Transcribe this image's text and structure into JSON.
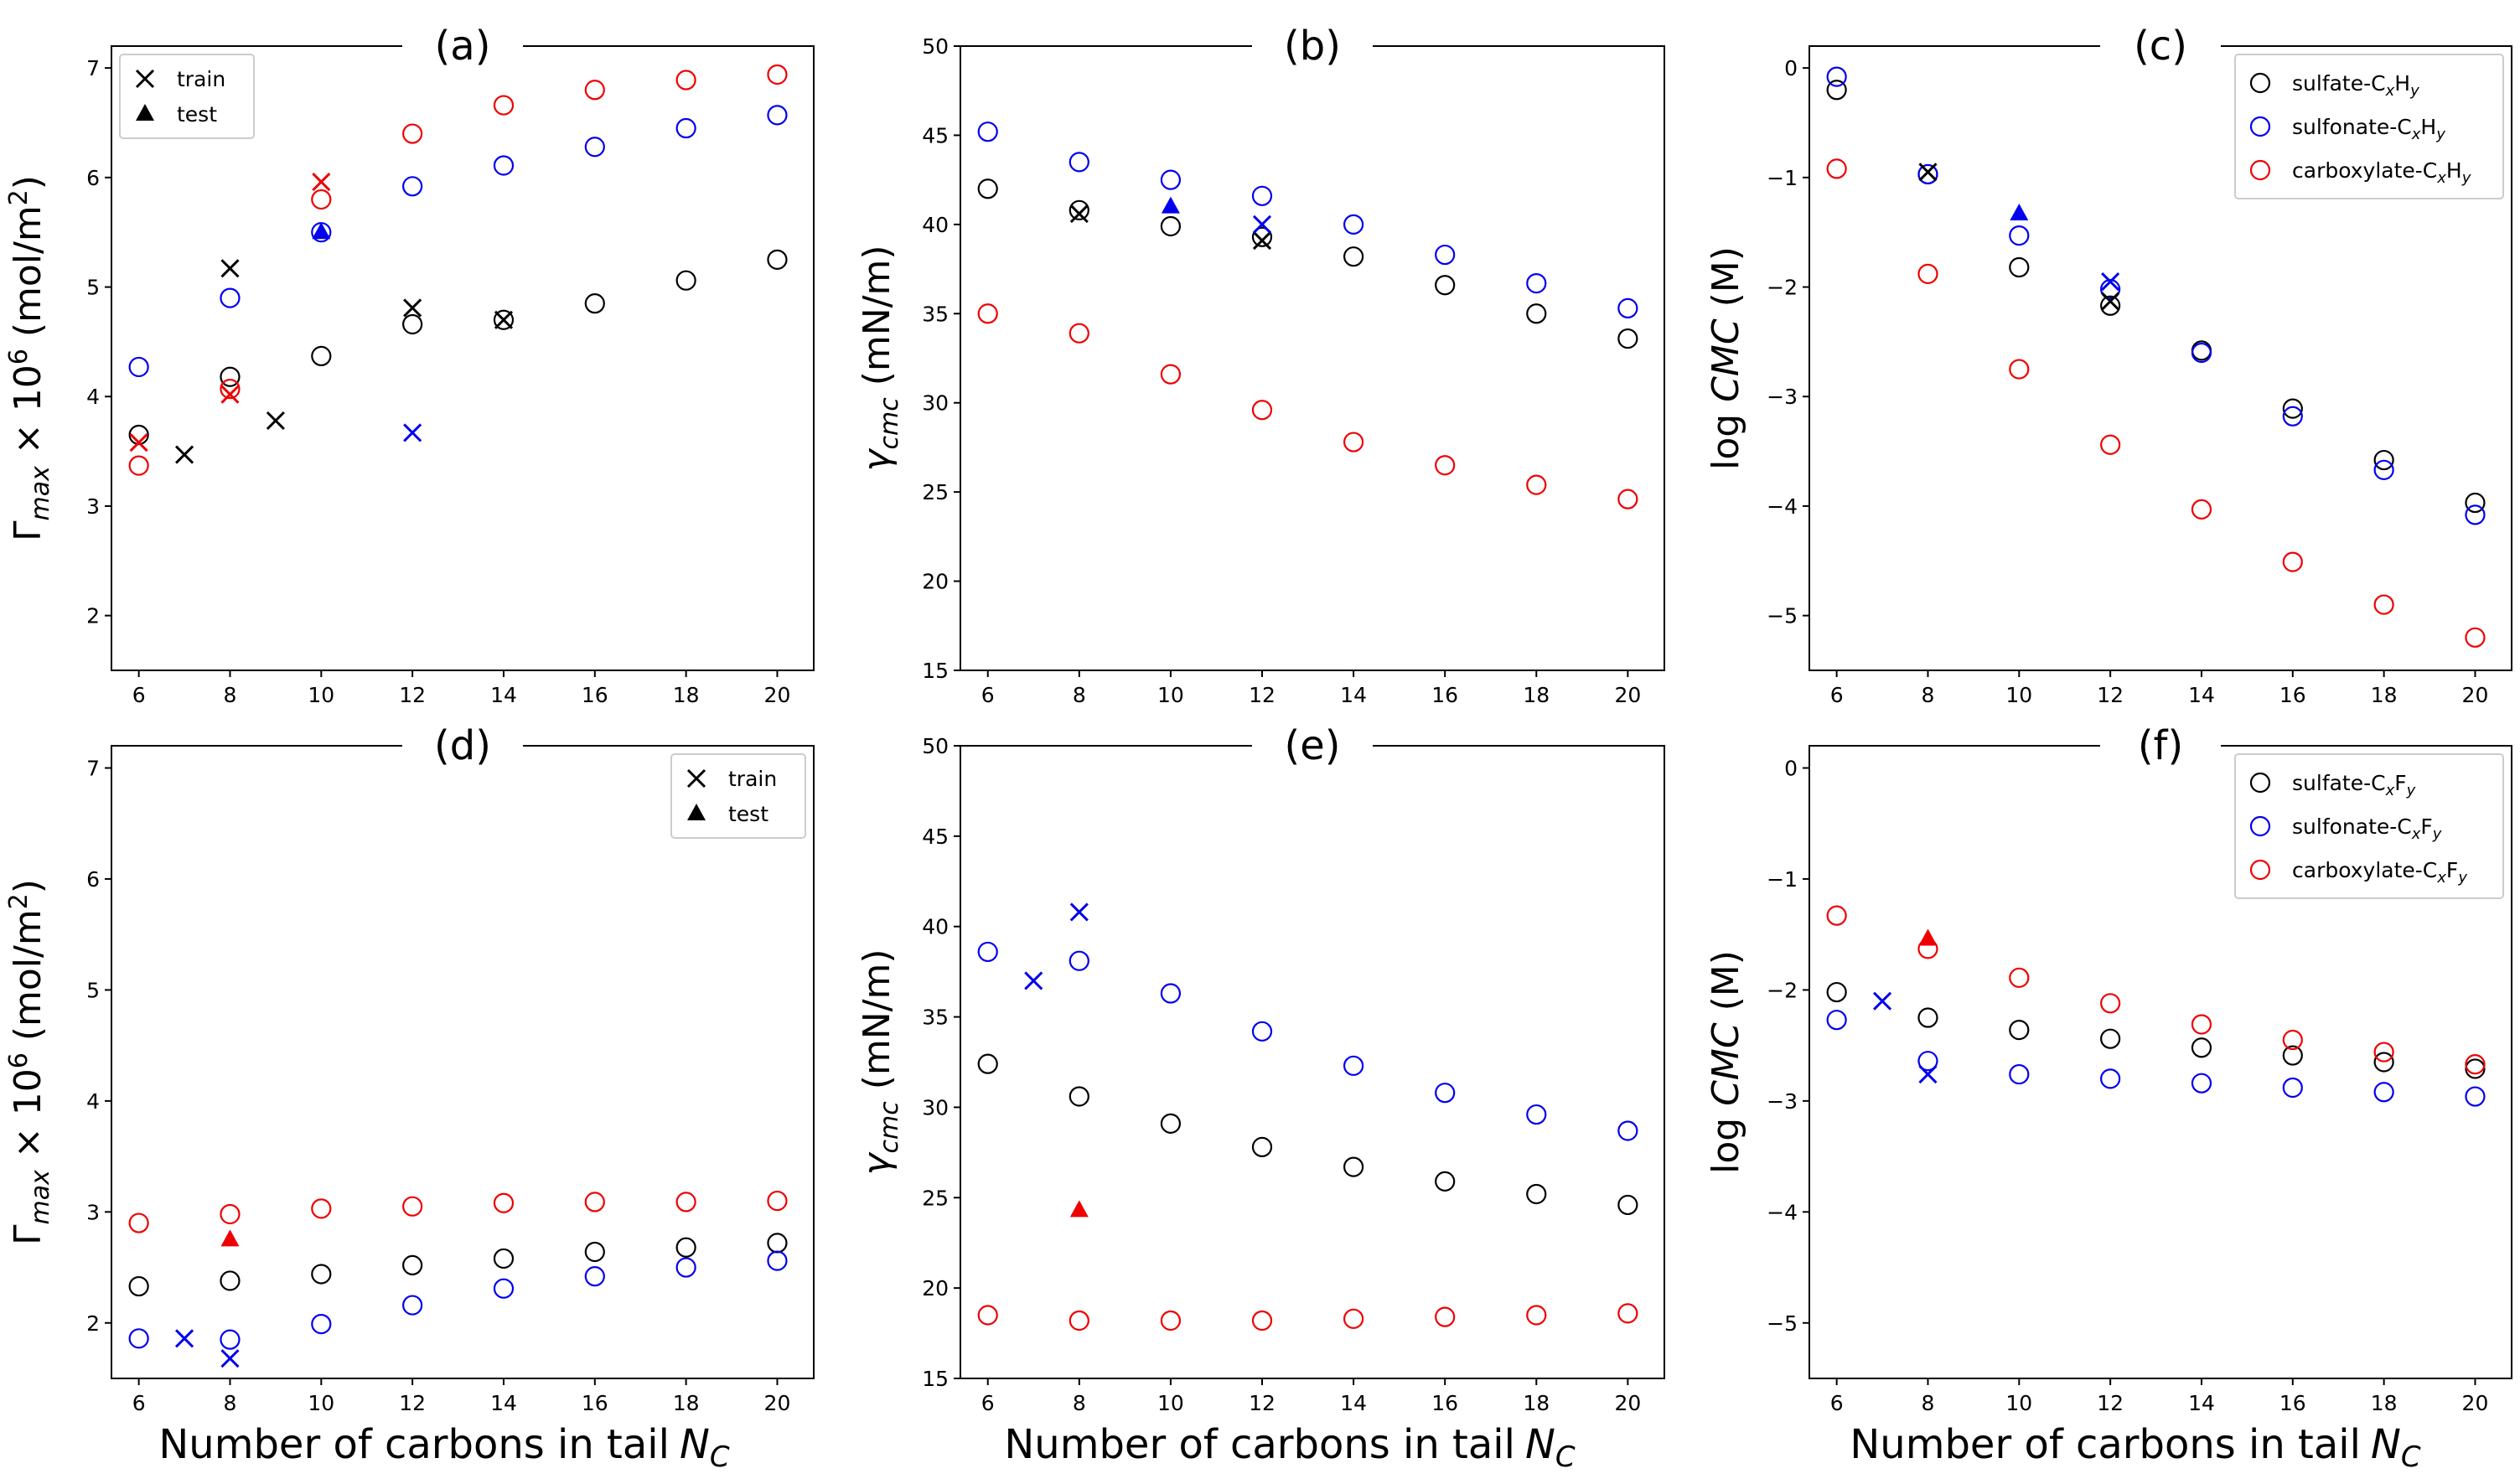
{
  "figure": {
    "x_axis_label_text": "Number of carbons in tail",
    "x_axis_label_symbol": "N",
    "x_axis_label_sub": "C"
  },
  "colors": {
    "sulfate": "#000000",
    "sulfonate": "#0000ee",
    "carboxylate": "#ee0000"
  },
  "chart_data": [
    {
      "panel": "(a)",
      "type": "scatter",
      "ylabel": {
        "pre": "Γ",
        "sub": "max",
        "mid": " × 10",
        "sup": "6",
        "post": " (mol/m",
        "sup2": "2",
        "end": ")"
      },
      "xlim": [
        5.4,
        20.8
      ],
      "ylim": [
        1.5,
        7.2
      ],
      "xticks": [
        6,
        8,
        10,
        12,
        14,
        16,
        18,
        20
      ],
      "yticks": [
        2,
        3,
        4,
        5,
        6,
        7
      ],
      "legend": {
        "position": "top-left",
        "entries": [
          {
            "marker": "x",
            "color": "#000000",
            "label": "train"
          },
          {
            "marker": "triangle",
            "color": "#000000",
            "label": "test"
          }
        ]
      },
      "series": [
        {
          "family": "sulfate",
          "color": "#000000",
          "marker": "circle",
          "x": [
            6,
            8,
            10,
            12,
            14,
            16,
            18,
            20
          ],
          "y": [
            3.65,
            4.18,
            4.37,
            4.66,
            4.7,
            4.85,
            5.06,
            5.25
          ]
        },
        {
          "family": "sulfonate",
          "color": "#0000ee",
          "marker": "circle",
          "x": [
            6,
            8,
            10,
            12,
            14,
            16,
            18,
            20
          ],
          "y": [
            4.27,
            4.9,
            5.5,
            5.92,
            6.11,
            6.28,
            6.45,
            6.57
          ]
        },
        {
          "family": "carboxylate",
          "color": "#ee0000",
          "marker": "circle",
          "x": [
            6,
            8,
            10,
            12,
            14,
            16,
            18,
            20
          ],
          "y": [
            3.37,
            4.07,
            5.8,
            6.4,
            6.66,
            6.8,
            6.89,
            6.94
          ]
        },
        {
          "family": "sulfate",
          "color": "#000000",
          "marker": "x",
          "x": [
            7,
            8,
            9,
            12,
            14
          ],
          "y": [
            3.47,
            5.17,
            3.78,
            4.81,
            4.7
          ]
        },
        {
          "family": "sulfonate",
          "color": "#0000ee",
          "marker": "x",
          "x": [
            12
          ],
          "y": [
            3.67
          ]
        },
        {
          "family": "carboxylate",
          "color": "#ee0000",
          "marker": "x",
          "x": [
            6,
            8,
            10
          ],
          "y": [
            3.58,
            4.02,
            5.96
          ]
        },
        {
          "family": "sulfonate",
          "color": "#0000ee",
          "marker": "triangle",
          "x": [
            10
          ],
          "y": [
            5.5
          ]
        }
      ]
    },
    {
      "panel": "(b)",
      "type": "scatter",
      "ylabel": {
        "pre": "γ",
        "sub": "cmc",
        "post": " (mN/m)"
      },
      "xlim": [
        5.4,
        20.8
      ],
      "ylim": [
        15,
        50
      ],
      "xticks": [
        6,
        8,
        10,
        12,
        14,
        16,
        18,
        20
      ],
      "yticks": [
        15,
        20,
        25,
        30,
        35,
        40,
        45,
        50
      ],
      "series": [
        {
          "family": "sulfate",
          "color": "#000000",
          "marker": "circle",
          "x": [
            6,
            8,
            10,
            12,
            14,
            16,
            18,
            20
          ],
          "y": [
            42,
            40.8,
            39.9,
            39.3,
            38.2,
            36.6,
            35,
            33.6
          ]
        },
        {
          "family": "sulfonate",
          "color": "#0000ee",
          "marker": "circle",
          "x": [
            6,
            8,
            10,
            12,
            14,
            16,
            18,
            20
          ],
          "y": [
            45.2,
            43.5,
            42.5,
            41.6,
            40,
            38.3,
            36.7,
            35.3
          ]
        },
        {
          "family": "carboxylate",
          "color": "#ee0000",
          "marker": "circle",
          "x": [
            6,
            8,
            10,
            12,
            14,
            16,
            18,
            20
          ],
          "y": [
            35,
            33.9,
            31.6,
            29.6,
            27.8,
            26.5,
            25.4,
            24.6
          ]
        },
        {
          "family": "sulfate",
          "color": "#000000",
          "marker": "x",
          "x": [
            8,
            12
          ],
          "y": [
            40.6,
            39.1
          ]
        },
        {
          "family": "sulfonate",
          "color": "#0000ee",
          "marker": "x",
          "x": [
            12
          ],
          "y": [
            40
          ]
        },
        {
          "family": "sulfonate",
          "color": "#0000ee",
          "marker": "triangle",
          "x": [
            10
          ],
          "y": [
            41
          ]
        }
      ]
    },
    {
      "panel": "(c)",
      "type": "scatter",
      "ylabel": {
        "pre": "log ",
        "ital": "CMC",
        "post": " (M)"
      },
      "xlim": [
        5.4,
        20.8
      ],
      "ylim": [
        -5.5,
        0.2
      ],
      "xticks": [
        6,
        8,
        10,
        12,
        14,
        16,
        18,
        20
      ],
      "yticks": [
        0,
        -1,
        -2,
        -3,
        -4,
        -5
      ],
      "legend": {
        "position": "top-right",
        "entries": [
          {
            "marker": "circle",
            "color": "#000000",
            "label": "sulfate-C",
            "sub1": "x",
            "mid": "H",
            "sub2": "y"
          },
          {
            "marker": "circle",
            "color": "#0000ee",
            "label": "sulfonate-C",
            "sub1": "x",
            "mid": "H",
            "sub2": "y"
          },
          {
            "marker": "circle",
            "color": "#ee0000",
            "label": "carboxylate-C",
            "sub1": "x",
            "mid": "H",
            "sub2": "y"
          }
        ]
      },
      "series": [
        {
          "family": "sulfate",
          "color": "#000000",
          "marker": "circle",
          "x": [
            6,
            8,
            10,
            12,
            14,
            16,
            18,
            20
          ],
          "y": [
            -0.2,
            -0.97,
            -1.82,
            -2.17,
            -2.58,
            -3.11,
            -3.58,
            -3.97
          ]
        },
        {
          "family": "sulfonate",
          "color": "#0000ee",
          "marker": "circle",
          "x": [
            6,
            8,
            10,
            12,
            14,
            16,
            18,
            20
          ],
          "y": [
            -0.08,
            -0.97,
            -1.53,
            -2.02,
            -2.6,
            -3.18,
            -3.67,
            -4.08
          ]
        },
        {
          "family": "carboxylate",
          "color": "#ee0000",
          "marker": "circle",
          "x": [
            6,
            8,
            10,
            12,
            14,
            16,
            18,
            20
          ],
          "y": [
            -0.92,
            -1.88,
            -2.75,
            -3.44,
            -4.03,
            -4.51,
            -4.9,
            -5.2
          ]
        },
        {
          "family": "sulfate",
          "color": "#000000",
          "marker": "x",
          "x": [
            8,
            12
          ],
          "y": [
            -0.95,
            -2.13
          ]
        },
        {
          "family": "sulfonate",
          "color": "#0000ee",
          "marker": "x",
          "x": [
            12
          ],
          "y": [
            -1.95
          ]
        },
        {
          "family": "sulfonate",
          "color": "#0000ee",
          "marker": "triangle",
          "x": [
            10
          ],
          "y": [
            -1.33
          ]
        }
      ]
    },
    {
      "panel": "(d)",
      "type": "scatter",
      "ylabel": {
        "pre": "Γ",
        "sub": "max",
        "mid": " × 10",
        "sup": "6",
        "post": " (mol/m",
        "sup2": "2",
        "end": ")"
      },
      "xlim": [
        5.4,
        20.8
      ],
      "ylim": [
        1.5,
        7.2
      ],
      "xticks": [
        6,
        8,
        10,
        12,
        14,
        16,
        18,
        20
      ],
      "yticks": [
        2,
        3,
        4,
        5,
        6,
        7
      ],
      "legend": {
        "position": "top-right",
        "entries": [
          {
            "marker": "x",
            "color": "#000000",
            "label": "train"
          },
          {
            "marker": "triangle",
            "color": "#000000",
            "label": "test"
          }
        ]
      },
      "series": [
        {
          "family": "sulfate",
          "color": "#000000",
          "marker": "circle",
          "x": [
            6,
            8,
            10,
            12,
            14,
            16,
            18,
            20
          ],
          "y": [
            2.33,
            2.38,
            2.44,
            2.52,
            2.58,
            2.64,
            2.68,
            2.72
          ]
        },
        {
          "family": "sulfonate",
          "color": "#0000ee",
          "marker": "circle",
          "x": [
            6,
            8,
            10,
            12,
            14,
            16,
            18,
            20
          ],
          "y": [
            1.86,
            1.85,
            1.99,
            2.16,
            2.31,
            2.42,
            2.5,
            2.56
          ]
        },
        {
          "family": "carboxylate",
          "color": "#ee0000",
          "marker": "circle",
          "x": [
            6,
            8,
            10,
            12,
            14,
            16,
            18,
            20
          ],
          "y": [
            2.9,
            2.98,
            3.03,
            3.05,
            3.08,
            3.09,
            3.09,
            3.1
          ]
        },
        {
          "family": "sulfonate",
          "color": "#0000ee",
          "marker": "x",
          "x": [
            7,
            8
          ],
          "y": [
            1.86,
            1.68
          ]
        },
        {
          "family": "carboxylate",
          "color": "#ee0000",
          "marker": "triangle",
          "x": [
            8
          ],
          "y": [
            2.75
          ]
        }
      ]
    },
    {
      "panel": "(e)",
      "type": "scatter",
      "ylabel": {
        "pre": "γ",
        "sub": "cmc",
        "post": " (mN/m)"
      },
      "xlim": [
        5.4,
        20.8
      ],
      "ylim": [
        15,
        50
      ],
      "xticks": [
        6,
        8,
        10,
        12,
        14,
        16,
        18,
        20
      ],
      "yticks": [
        15,
        20,
        25,
        30,
        35,
        40,
        45,
        50
      ],
      "series": [
        {
          "family": "sulfate",
          "color": "#000000",
          "marker": "circle",
          "x": [
            6,
            8,
            10,
            12,
            14,
            16,
            18,
            20
          ],
          "y": [
            32.4,
            30.6,
            29.1,
            27.8,
            26.7,
            25.9,
            25.2,
            24.6
          ]
        },
        {
          "family": "sulfonate",
          "color": "#0000ee",
          "marker": "circle",
          "x": [
            6,
            8,
            10,
            12,
            14,
            16,
            18,
            20
          ],
          "y": [
            38.6,
            38.1,
            36.3,
            34.2,
            32.3,
            30.8,
            29.6,
            28.7
          ]
        },
        {
          "family": "carboxylate",
          "color": "#ee0000",
          "marker": "circle",
          "x": [
            6,
            8,
            10,
            12,
            14,
            16,
            18,
            20
          ],
          "y": [
            18.5,
            18.2,
            18.2,
            18.2,
            18.3,
            18.4,
            18.5,
            18.6
          ]
        },
        {
          "family": "sulfonate",
          "color": "#0000ee",
          "marker": "x",
          "x": [
            7,
            8
          ],
          "y": [
            37,
            40.8
          ]
        },
        {
          "family": "carboxylate",
          "color": "#ee0000",
          "marker": "triangle",
          "x": [
            8
          ],
          "y": [
            24.3
          ]
        }
      ]
    },
    {
      "panel": "(f)",
      "type": "scatter",
      "ylabel": {
        "pre": "log ",
        "ital": "CMC",
        "post": " (M)"
      },
      "xlim": [
        5.4,
        20.8
      ],
      "ylim": [
        -5.5,
        0.2
      ],
      "xticks": [
        6,
        8,
        10,
        12,
        14,
        16,
        18,
        20
      ],
      "yticks": [
        0,
        -1,
        -2,
        -3,
        -4,
        -5
      ],
      "legend": {
        "position": "top-right",
        "entries": [
          {
            "marker": "circle",
            "color": "#000000",
            "label": "sulfate-C",
            "sub1": "x",
            "mid": "F",
            "sub2": "y"
          },
          {
            "marker": "circle",
            "color": "#0000ee",
            "label": "sulfonate-C",
            "sub1": "x",
            "mid": "F",
            "sub2": "y"
          },
          {
            "marker": "circle",
            "color": "#ee0000",
            "label": "carboxylate-C",
            "sub1": "x",
            "mid": "F",
            "sub2": "y"
          }
        ]
      },
      "series": [
        {
          "family": "sulfate",
          "color": "#000000",
          "marker": "circle",
          "x": [
            6,
            8,
            10,
            12,
            14,
            16,
            18,
            20
          ],
          "y": [
            -2.02,
            -2.25,
            -2.36,
            -2.44,
            -2.52,
            -2.59,
            -2.65,
            -2.71
          ]
        },
        {
          "family": "sulfonate",
          "color": "#0000ee",
          "marker": "circle",
          "x": [
            6,
            8,
            10,
            12,
            14,
            16,
            18,
            20
          ],
          "y": [
            -2.27,
            -2.64,
            -2.76,
            -2.8,
            -2.84,
            -2.88,
            -2.92,
            -2.96
          ]
        },
        {
          "family": "carboxylate",
          "color": "#ee0000",
          "marker": "circle",
          "x": [
            6,
            8,
            10,
            12,
            14,
            16,
            18,
            20
          ],
          "y": [
            -1.33,
            -1.63,
            -1.89,
            -2.12,
            -2.31,
            -2.45,
            -2.56,
            -2.67
          ]
        },
        {
          "family": "sulfonate",
          "color": "#0000ee",
          "marker": "x",
          "x": [
            7,
            8
          ],
          "y": [
            -2.1,
            -2.76
          ]
        },
        {
          "family": "carboxylate",
          "color": "#ee0000",
          "marker": "triangle",
          "x": [
            8
          ],
          "y": [
            -1.54
          ]
        }
      ]
    }
  ]
}
